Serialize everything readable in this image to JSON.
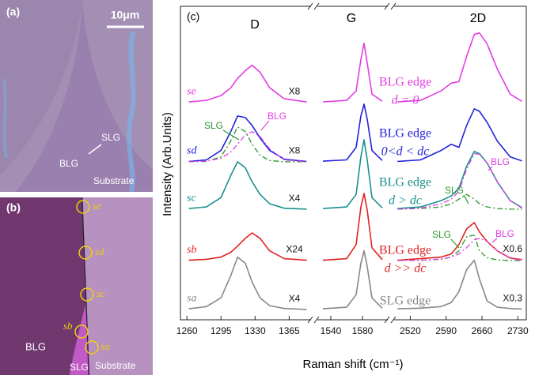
{
  "panels": {
    "a": {
      "label": "(a)",
      "scale_bar": "10μm",
      "labels": [
        "SLG",
        "BLG",
        "Substrate"
      ]
    },
    "b": {
      "label": "(b)",
      "points": [
        "se",
        "sd",
        "sc",
        "sb",
        "sa"
      ],
      "labels": [
        "BLG",
        "SLG",
        "Substrate"
      ]
    }
  },
  "chart_data": {
    "type": "line",
    "panel_label": "(c)",
    "xlabel": "Raman shift (cm⁻¹)",
    "ylabel": "Intensity (Arb.Units)",
    "peak_labels": [
      "D",
      "G",
      "2D"
    ],
    "ylim": [
      0,
      10
    ],
    "segments": [
      {
        "xlim": [
          1255,
          1385
        ],
        "xticks": [
          1260,
          1295,
          1330,
          1365
        ],
        "x": [
          1262,
          1280,
          1295,
          1305,
          1312,
          1320,
          1327,
          1335,
          1345,
          1360,
          1383
        ]
      },
      {
        "xlim": [
          1525,
          1610
        ],
        "xticks": [
          1540,
          1580
        ],
        "x": [
          1530,
          1560,
          1572,
          1578,
          1582,
          1586,
          1592,
          1605
        ]
      },
      {
        "xlim": [
          2490,
          2745
        ],
        "xticks": [
          2520,
          2590,
          2660,
          2730
        ],
        "x": [
          2495,
          2540,
          2580,
          2600,
          2615,
          2630,
          2645,
          2655,
          2670,
          2690,
          2715,
          2738
        ]
      }
    ],
    "series": [
      {
        "name": "se",
        "color": "#e23ee2",
        "multipliers": [
          "X8",
          null,
          null
        ],
        "edge_label": [
          "BLG edge",
          "d = 0"
        ],
        "values": [
          [
            6.95,
            7.0,
            7.15,
            7.4,
            7.7,
            7.95,
            8.12,
            7.9,
            7.4,
            7.05,
            6.95
          ],
          [
            6.95,
            7.0,
            7.3,
            8.3,
            8.82,
            8.2,
            7.2,
            6.97
          ],
          [
            6.95,
            7.0,
            7.3,
            7.55,
            7.6,
            8.4,
            9.1,
            9.15,
            8.8,
            8.0,
            7.2,
            6.97
          ]
        ]
      },
      {
        "name": "sd",
        "color": "#2222dd",
        "multipliers": [
          "X8",
          null,
          null
        ],
        "edge_label": [
          "BLG edge",
          "0<d < dc"
        ],
        "values": [
          [
            5.05,
            5.1,
            5.4,
            6.0,
            6.5,
            6.45,
            6.2,
            5.8,
            5.4,
            5.12,
            5.05
          ],
          [
            5.06,
            5.1,
            5.5,
            6.5,
            6.88,
            6.4,
            5.4,
            5.08
          ],
          [
            5.05,
            5.1,
            5.4,
            5.6,
            5.5,
            6.2,
            6.73,
            6.65,
            6.3,
            5.7,
            5.2,
            5.07
          ]
        ]
      },
      {
        "name": "sc",
        "color": "#1a9090",
        "multipliers": [
          "X4",
          null,
          null
        ],
        "edge_label": [
          "BLG edge",
          "d > dc"
        ],
        "values": [
          [
            3.55,
            3.6,
            3.9,
            4.6,
            5.04,
            4.85,
            4.4,
            4.0,
            3.7,
            3.56,
            3.53
          ],
          [
            3.55,
            3.6,
            4.0,
            5.2,
            5.74,
            5.1,
            3.9,
            3.57
          ],
          [
            3.55,
            3.6,
            3.8,
            3.95,
            4.2,
            4.9,
            5.37,
            5.3,
            5.0,
            4.4,
            3.8,
            3.58
          ]
        ]
      },
      {
        "name": "sb",
        "color": "#e32222",
        "multipliers": [
          "X24",
          null,
          "X0.6"
        ],
        "edge_label": [
          "BLG edge",
          "d >> dc"
        ],
        "values": [
          [
            1.9,
            1.93,
            2.0,
            2.15,
            2.35,
            2.6,
            2.77,
            2.6,
            2.2,
            1.95,
            1.9
          ],
          [
            1.9,
            1.95,
            2.4,
            3.6,
            4.03,
            3.5,
            2.3,
            1.92
          ],
          [
            1.9,
            1.95,
            2.0,
            2.1,
            2.4,
            2.9,
            3.1,
            2.8,
            2.5,
            2.2,
            1.97,
            1.92
          ]
        ]
      },
      {
        "name": "sa",
        "color": "#888888",
        "multipliers": [
          "X4",
          null,
          "X0.3"
        ],
        "edge_label": [
          "SLG edge"
        ],
        "values": [
          [
            0.35,
            0.42,
            0.7,
            1.4,
            2.0,
            1.8,
            1.2,
            0.7,
            0.45,
            0.36,
            0.33
          ],
          [
            0.35,
            0.4,
            0.8,
            1.8,
            2.2,
            1.7,
            0.7,
            0.37
          ],
          [
            0.35,
            0.37,
            0.42,
            0.55,
            0.9,
            1.6,
            1.9,
            1.3,
            0.6,
            0.4,
            0.36,
            0.34
          ]
        ]
      }
    ],
    "components": [
      {
        "name": "SLG",
        "color": "#2a962a",
        "segment": 0,
        "values": [
          5.04,
          5.05,
          5.2,
          5.7,
          6.15,
          6.0,
          5.6,
          5.25,
          5.08,
          5.04,
          5.04
        ]
      },
      {
        "name": "BLG",
        "color": "#e23ee2",
        "segment": 0,
        "values": [
          5.04,
          5.06,
          5.15,
          5.35,
          5.6,
          5.9,
          6.0,
          5.85,
          5.45,
          5.1,
          5.04
        ]
      },
      {
        "name": "SLG",
        "color": "#2a962a",
        "segment": 2,
        "values": [
          3.53,
          3.55,
          3.6,
          3.7,
          3.85,
          4.0,
          3.85,
          3.7,
          3.6,
          3.55,
          3.53,
          3.53
        ]
      },
      {
        "name": "BLG",
        "color": "#e23ee2",
        "segment": 2,
        "values": [
          3.53,
          3.56,
          3.7,
          3.85,
          4.1,
          4.8,
          5.3,
          5.28,
          5.0,
          4.4,
          3.8,
          3.56
        ]
      },
      {
        "name": "SLG",
        "color": "#2a962a",
        "segment": 2,
        "values": [
          1.89,
          1.9,
          1.93,
          2.0,
          2.2,
          2.65,
          2.7,
          2.2,
          1.98,
          1.91,
          1.89,
          1.89
        ]
      },
      {
        "name": "BLG",
        "color": "#e23ee2",
        "segment": 2,
        "values": [
          1.89,
          1.9,
          1.94,
          2.0,
          2.1,
          2.3,
          2.55,
          2.6,
          2.5,
          2.2,
          1.96,
          1.9
        ]
      }
    ]
  }
}
